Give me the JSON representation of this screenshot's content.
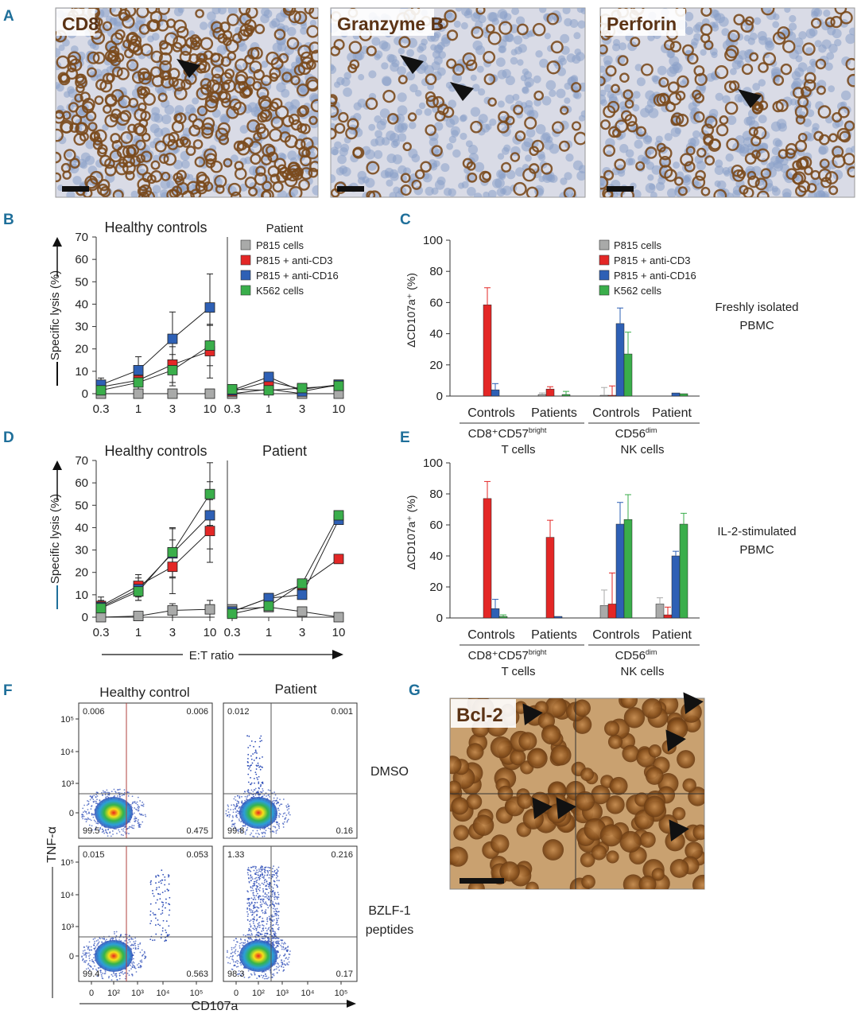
{
  "panel_letters": [
    "A",
    "B",
    "C",
    "D",
    "E",
    "F",
    "G"
  ],
  "panel_a": {
    "micrographs": [
      "CD8",
      "Granzyme B",
      "Perforin"
    ]
  },
  "panel_g": {
    "micrograph_label": "Bcl-2"
  },
  "colors": {
    "P815 cells": "#a9aaa9",
    "P815 + anti-CD3": "#e32726",
    "P815 + anti-CD16": "#2e60b5",
    "K562 cells": "#3aae4b",
    "panel_letter": "#1f6f9a",
    "stain_brown": "#7a4a1d",
    "hematoxylin_blue": "#8aa0c8"
  },
  "legend": [
    "P815 cells",
    "P815 + anti-CD3",
    "P815 + anti-CD16",
    "K562 cells"
  ],
  "lysis_axis": {
    "ylabel": "Specific lysis (%)",
    "yticks": [
      "0",
      "10",
      "20",
      "30",
      "40",
      "50",
      "60",
      "70"
    ],
    "xticks": [
      "0.3",
      "1",
      "3",
      "10"
    ],
    "xlabel": "E:T ratio"
  },
  "cd107_axis": {
    "ylabel": "ΔCD107a⁺ (%)",
    "yticks": [
      "0",
      "20",
      "40",
      "60",
      "80",
      "100"
    ],
    "groups": [
      "Controls",
      "Patients",
      "Controls",
      "Patient"
    ],
    "cell_types": [
      {
        "line1": "CD8⁺CD57",
        "sup": "bright",
        "line2": "T cells"
      },
      {
        "line1": "CD56",
        "sup": "dim",
        "line2": "NK cells"
      }
    ]
  },
  "side_labels": {
    "c": [
      "Freshly isolated",
      "PBMC"
    ],
    "e": [
      "IL-2-stimulated",
      "PBMC"
    ]
  },
  "chart_data": [
    {
      "panel": "B-left",
      "type": "line",
      "title": "Healthy controls",
      "x": [
        "0.3",
        "1",
        "3",
        "10"
      ],
      "ylim": [
        0,
        70
      ],
      "series": [
        {
          "name": "P815 cells",
          "values": [
            0,
            0,
            0,
            0
          ],
          "err": [
            0,
            0,
            0,
            0
          ]
        },
        {
          "name": "P815 + anti-CD3",
          "values": [
            3,
            6,
            13,
            19
          ],
          "err": [
            3,
            4,
            8,
            12
          ]
        },
        {
          "name": "P815 + anti-CD16",
          "values": [
            4,
            10.5,
            24.5,
            38.5
          ],
          "err": [
            3,
            6,
            12,
            15
          ]
        },
        {
          "name": "K562 cells",
          "values": [
            1.5,
            5,
            10.5,
            21.5
          ],
          "err": [
            3,
            4,
            7,
            9
          ]
        }
      ]
    },
    {
      "panel": "B-right",
      "type": "line",
      "title": "Patient",
      "x": [
        "0.3",
        "1",
        "3",
        "10"
      ],
      "ylim": [
        0,
        70
      ],
      "series": [
        {
          "name": "P815 cells",
          "values": [
            0,
            2,
            0,
            0
          ]
        },
        {
          "name": "P815 + anti-CD3",
          "values": [
            1,
            5.5,
            2,
            4
          ]
        },
        {
          "name": "P815 + anti-CD16",
          "values": [
            1.5,
            7.5,
            1,
            4
          ]
        },
        {
          "name": "K562 cells",
          "values": [
            2,
            1.5,
            2.5,
            3.5
          ]
        }
      ]
    },
    {
      "panel": "C",
      "type": "bar",
      "ylim": [
        0,
        100
      ],
      "categories": [
        "Controls",
        "Patients",
        "Controls",
        "Patient"
      ],
      "series": [
        {
          "name": "P815 cells",
          "values": [
            0,
            1,
            0.5,
            0
          ],
          "err": [
            0,
            1,
            5,
            0
          ]
        },
        {
          "name": "P815 + anti-CD3",
          "values": [
            58.5,
            4.5,
            0.5,
            0
          ],
          "err": [
            11,
            1.5,
            6,
            0
          ]
        },
        {
          "name": "P815 + anti-CD16",
          "values": [
            4,
            0,
            46.5,
            2
          ],
          "err": [
            4,
            0,
            10,
            0
          ]
        },
        {
          "name": "K562 cells",
          "values": [
            0,
            1,
            27,
            1.5
          ],
          "err": [
            0,
            2,
            14,
            0
          ]
        }
      ]
    },
    {
      "panel": "D-left",
      "type": "line",
      "title": "Healthy controls",
      "x": [
        "0.3",
        "1",
        "3",
        "10"
      ],
      "ylim": [
        0,
        70
      ],
      "series": [
        {
          "name": "P815 cells",
          "values": [
            0,
            0.5,
            3,
            3.5
          ],
          "err": [
            0,
            0.5,
            3,
            4
          ]
        },
        {
          "name": "P815 + anti-CD3",
          "values": [
            5,
            14,
            22.5,
            38.5
          ],
          "err": [
            4,
            5,
            12,
            14
          ]
        },
        {
          "name": "P815 + anti-CD16",
          "values": [
            4.5,
            12.5,
            28.5,
            45.5
          ],
          "err": [
            3,
            5,
            11,
            15
          ]
        },
        {
          "name": "K562 cells",
          "values": [
            4,
            11.5,
            29,
            55
          ],
          "err": [
            3,
            4,
            11,
            14
          ]
        }
      ]
    },
    {
      "panel": "D-right",
      "type": "line",
      "title": "Patient",
      "x": [
        "0.3",
        "1",
        "3",
        "10"
      ],
      "ylim": [
        0,
        70
      ],
      "series": [
        {
          "name": "P815 cells",
          "values": [
            3.5,
            4.5,
            2.5,
            0
          ]
        },
        {
          "name": "P815 + anti-CD3",
          "values": [
            2.5,
            8.5,
            14.5,
            26
          ]
        },
        {
          "name": "P815 + anti-CD16",
          "values": [
            2.5,
            8.5,
            10,
            43.5
          ]
        },
        {
          "name": "K562 cells",
          "values": [
            1.5,
            5,
            15,
            45.5
          ]
        }
      ]
    },
    {
      "panel": "E",
      "type": "bar",
      "ylim": [
        0,
        100
      ],
      "categories": [
        "Controls",
        "Patients",
        "Controls",
        "Patient"
      ],
      "series": [
        {
          "name": "P815 cells",
          "values": [
            0,
            0,
            8,
            9
          ],
          "err": [
            0,
            0,
            10,
            4
          ]
        },
        {
          "name": "P815 + anti-CD3",
          "values": [
            77,
            52,
            9,
            2
          ],
          "err": [
            11,
            11,
            20,
            5
          ]
        },
        {
          "name": "P815 + anti-CD16",
          "values": [
            6,
            1,
            60.5,
            40
          ],
          "err": [
            6,
            0,
            14,
            3
          ]
        },
        {
          "name": "K562 cells",
          "values": [
            1,
            0,
            63.5,
            60.5
          ],
          "err": [
            1,
            0,
            16,
            7
          ]
        }
      ]
    },
    {
      "panel": "F",
      "type": "scatter",
      "xlabel": "CD107a",
      "ylabel": "TNF-α",
      "columns": [
        "Healthy control",
        "Patient"
      ],
      "rows": [
        "DMSO",
        "BZLF-1 peptides"
      ],
      "row_label_lines": [
        [
          "DMSO"
        ],
        [
          "BZLF-1",
          "peptides"
        ]
      ],
      "xticks": [
        "0",
        "10²",
        "10³",
        "10⁴",
        "10⁵"
      ],
      "yticks": [
        "0",
        "10³",
        "10⁴",
        "10⁵"
      ],
      "quadrants": [
        {
          "ul": "0.006",
          "ur": "0.006",
          "ll": "99.5",
          "lr": "0.475"
        },
        {
          "ul": "0.012",
          "ur": "0.001",
          "ll": "99.8",
          "lr": "0.16"
        },
        {
          "ul": "0.015",
          "ur": "0.053",
          "ll": "99.4",
          "lr": "0.563"
        },
        {
          "ul": "1.33",
          "ur": "0.216",
          "ll": "98.3",
          "lr": "0.17"
        }
      ]
    }
  ]
}
